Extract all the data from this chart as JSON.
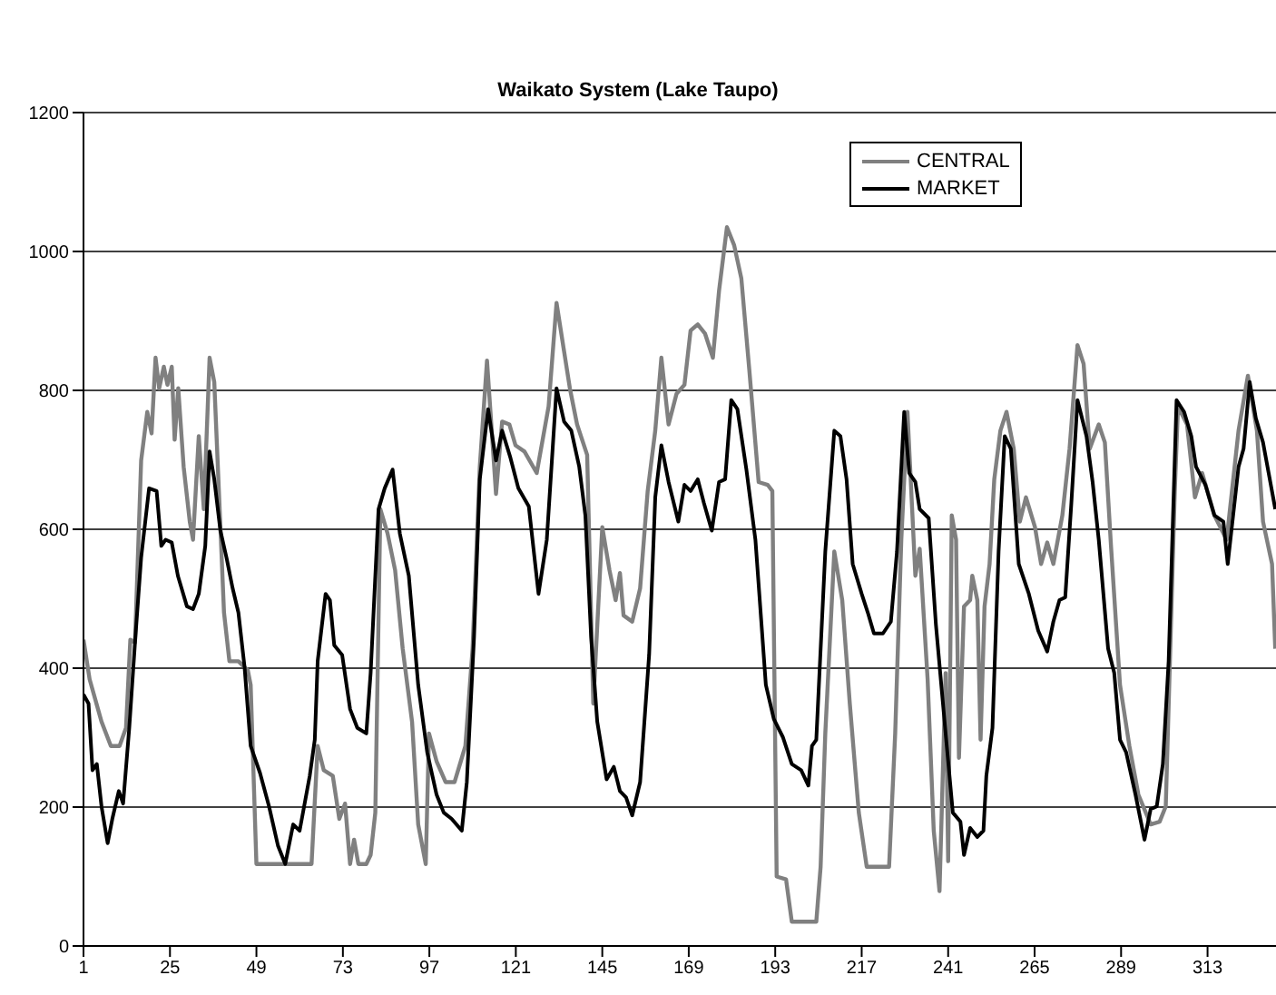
{
  "chart_data": {
    "type": "line",
    "title": "Waikato System (Lake Taupo)",
    "xlim": [
      1,
      332
    ],
    "xticks": [
      1,
      25,
      49,
      73,
      97,
      121,
      145,
      169,
      193,
      217,
      241,
      265,
      289,
      313
    ],
    "ylim": [
      0,
      1200
    ],
    "yticks": [
      0,
      200,
      400,
      600,
      800,
      1000,
      1200
    ],
    "grid": "y",
    "legend": "top right",
    "marker": "none",
    "line_style": "solid",
    "series": [
      {
        "name": "CENTRAL",
        "color": "#808080",
        "x": [
          1,
          2.7,
          6,
          8.6,
          11,
          12.8,
          14,
          15.3,
          17,
          18.7,
          19.9,
          21,
          22,
          23.3,
          24.3,
          25.5,
          26.3,
          27.3,
          28.8,
          30.5,
          31.4,
          33,
          34.4,
          36,
          37.3,
          39,
          40,
          41.5,
          44,
          46.6,
          47.4,
          49,
          64.3,
          66,
          67.7,
          70.2,
          72,
          73.6,
          75,
          76.1,
          77.3,
          79.5,
          80.7,
          82,
          83.4,
          85.4,
          87.5,
          89.6,
          92.2,
          93.9,
          96,
          96.9,
          99,
          101.5,
          104,
          107,
          109,
          111,
          113,
          115.5,
          117.2,
          119.2,
          120.9,
          123.4,
          126.8,
          130.1,
          132.3,
          134.4,
          136,
          138,
          140.8,
          142.5,
          145,
          147,
          148.7,
          149.9,
          150.9,
          153.3,
          155.5,
          157.6,
          159.7,
          161.4,
          163.4,
          165.6,
          167.8,
          169.5,
          171.5,
          173.5,
          175.7,
          177.4,
          179.6,
          181.6,
          183.6,
          185.8,
          188.4,
          190.9,
          192.2,
          193.4,
          196,
          197.6,
          204.4,
          205.6,
          206.9,
          209.4,
          211.6,
          213.7,
          216.2,
          218.4,
          224.6,
          226.3,
          228,
          229.7,
          231.9,
          233.1,
          235.3,
          237,
          238.6,
          240.3,
          241,
          242,
          243.2,
          244,
          245.4,
          247.1,
          247.7,
          249.1,
          250,
          251.1,
          252.5,
          253.8,
          255.5,
          257.2,
          259.2,
          260.9,
          262.6,
          265.1,
          266.8,
          268.5,
          270.2,
          272.7,
          274.7,
          276.9,
          278.6,
          280.3,
          282.8,
          284.5,
          286.2,
          288.7,
          291.3,
          293.8,
          297.2,
          299.7,
          301.4,
          303.9,
          304.8,
          307.3,
          309.5,
          311.5,
          314.9,
          318.3,
          321.6,
          324.2,
          326.7,
          328.4,
          330.9,
          331.8
        ],
        "values": [
          441,
          384,
          323,
          288,
          288,
          314,
          441,
          437,
          699,
          769,
          738,
          847,
          803,
          834,
          808,
          834,
          729,
          803,
          690,
          611,
          585,
          734,
          629,
          847,
          812,
          603,
          480,
          410,
          410,
          397,
          376,
          118,
          118,
          288,
          253,
          245,
          183,
          205,
          118,
          153,
          118,
          118,
          131,
          192,
          629,
          594,
          541,
          428,
          323,
          175,
          118,
          306,
          266,
          236,
          236,
          288,
          428,
          690,
          843,
          651,
          755,
          751,
          721,
          712,
          681,
          777,
          926,
          856,
          803,
          751,
          707,
          349,
          603,
          541,
          498,
          537,
          476,
          467,
          515,
          655,
          742,
          847,
          751,
          795,
          808,
          886,
          895,
          882,
          847,
          943,
          1035,
          1009,
          961,
          830,
          668,
          664,
          655,
          100,
          96,
          35,
          35,
          114,
          306,
          568,
          498,
          349,
          192,
          114,
          114,
          306,
          585,
          769,
          533,
          572,
          384,
          166,
          79,
          393,
          122,
          620,
          585,
          271,
          489,
          498,
          533,
          498,
          297,
          489,
          550,
          672,
          742,
          769,
          716,
          611,
          646,
          603,
          550,
          581,
          550,
          620,
          716,
          865,
          838,
          716,
          751,
          725,
          576,
          376,
          288,
          218,
          175,
          179,
          201,
          655,
          777,
          751,
          646,
          681,
          620,
          585,
          742,
          821,
          742,
          611,
          550,
          428
        ]
      },
      {
        "name": "MARKET",
        "color": "#000000",
        "x": [
          1,
          2.4,
          3.5,
          4.7,
          6,
          7.7,
          9,
          10.8,
          12,
          13.7,
          15.3,
          17,
          19.2,
          21.3,
          22.6,
          23.8,
          25.5,
          27.2,
          29.7,
          31.4,
          33,
          34.8,
          36,
          37.3,
          39,
          40.7,
          42.4,
          44,
          45.7,
          47.4,
          50,
          52.5,
          55,
          57,
          59.2,
          61,
          63.8,
          65.2,
          66,
          68.2,
          69.4,
          70.6,
          72.8,
          75,
          77,
          79.5,
          80.7,
          82.9,
          84.6,
          86.8,
          88.8,
          91.3,
          93.9,
          96.4,
          99,
          101,
          103.2,
          106,
          107.4,
          109.4,
          111,
          113.3,
          115.5,
          117.2,
          119.5,
          121.7,
          124.6,
          127.3,
          129.6,
          132.3,
          134.4,
          136.4,
          138.6,
          140.3,
          141.9,
          143.6,
          146.2,
          148.2,
          149.9,
          151.6,
          153.3,
          155.5,
          158,
          159.7,
          161.4,
          163.4,
          166.1,
          167.8,
          169.5,
          171.5,
          173.2,
          175.4,
          177.4,
          179.1,
          180.8,
          182.5,
          185,
          187.5,
          190.4,
          192.6,
          195.1,
          197.6,
          200.2,
          202.2,
          203.2,
          204.4,
          206.9,
          209.4,
          211.1,
          212.8,
          214.5,
          217,
          218.7,
          220.4,
          222.9,
          225.1,
          226.8,
          228.8,
          230.2,
          231.9,
          233.1,
          235.6,
          237.6,
          240.3,
          242.3,
          244.4,
          245.4,
          247.1,
          249.1,
          250.8,
          251.6,
          253.3,
          255,
          256.7,
          258.4,
          260.6,
          263.4,
          266,
          268.5,
          270.2,
          271.9,
          273.5,
          275.2,
          276.9,
          279.4,
          281.1,
          282.8,
          285.4,
          287.1,
          288.7,
          290.4,
          293,
          295.5,
          297.2,
          298.9,
          300.6,
          302.2,
          304.4,
          306.5,
          308.5,
          309.8,
          312.4,
          314.9,
          317.4,
          318.6,
          321.6,
          323,
          324.7,
          326.4,
          328.4,
          331.8
        ],
        "values": [
          362,
          349,
          253,
          262,
          201,
          148,
          183,
          223,
          205,
          314,
          437,
          559,
          659,
          655,
          576,
          585,
          581,
          533,
          489,
          485,
          507,
          576,
          712,
          672,
          598,
          559,
          515,
          480,
          402,
          288,
          249,
          201,
          144,
          118,
          175,
          166,
          245,
          297,
          410,
          507,
          498,
          433,
          419,
          341,
          314,
          306,
          393,
          629,
          659,
          686,
          594,
          533,
          376,
          279,
          218,
          192,
          183,
          166,
          236,
          445,
          672,
          773,
          699,
          742,
          703,
          659,
          633,
          507,
          585,
          803,
          755,
          742,
          690,
          620,
          445,
          323,
          240,
          258,
          223,
          214,
          188,
          236,
          419,
          646,
          721,
          668,
          611,
          664,
          655,
          672,
          638,
          598,
          668,
          672,
          786,
          773,
          686,
          585,
          376,
          327,
          301,
          262,
          253,
          231,
          288,
          297,
          568,
          742,
          734,
          672,
          550,
          507,
          480,
          450,
          450,
          467,
          568,
          769,
          681,
          668,
          629,
          616,
          463,
          306,
          192,
          179,
          131,
          170,
          157,
          166,
          245,
          314,
          568,
          734,
          716,
          550,
          507,
          454,
          424,
          467,
          498,
          502,
          638,
          786,
          734,
          668,
          585,
          428,
          393,
          297,
          279,
          218,
          153,
          197,
          201,
          262,
          410,
          786,
          769,
          734,
          690,
          664,
          620,
          611,
          550,
          690,
          716,
          812,
          760,
          725,
          629
        ]
      }
    ]
  }
}
